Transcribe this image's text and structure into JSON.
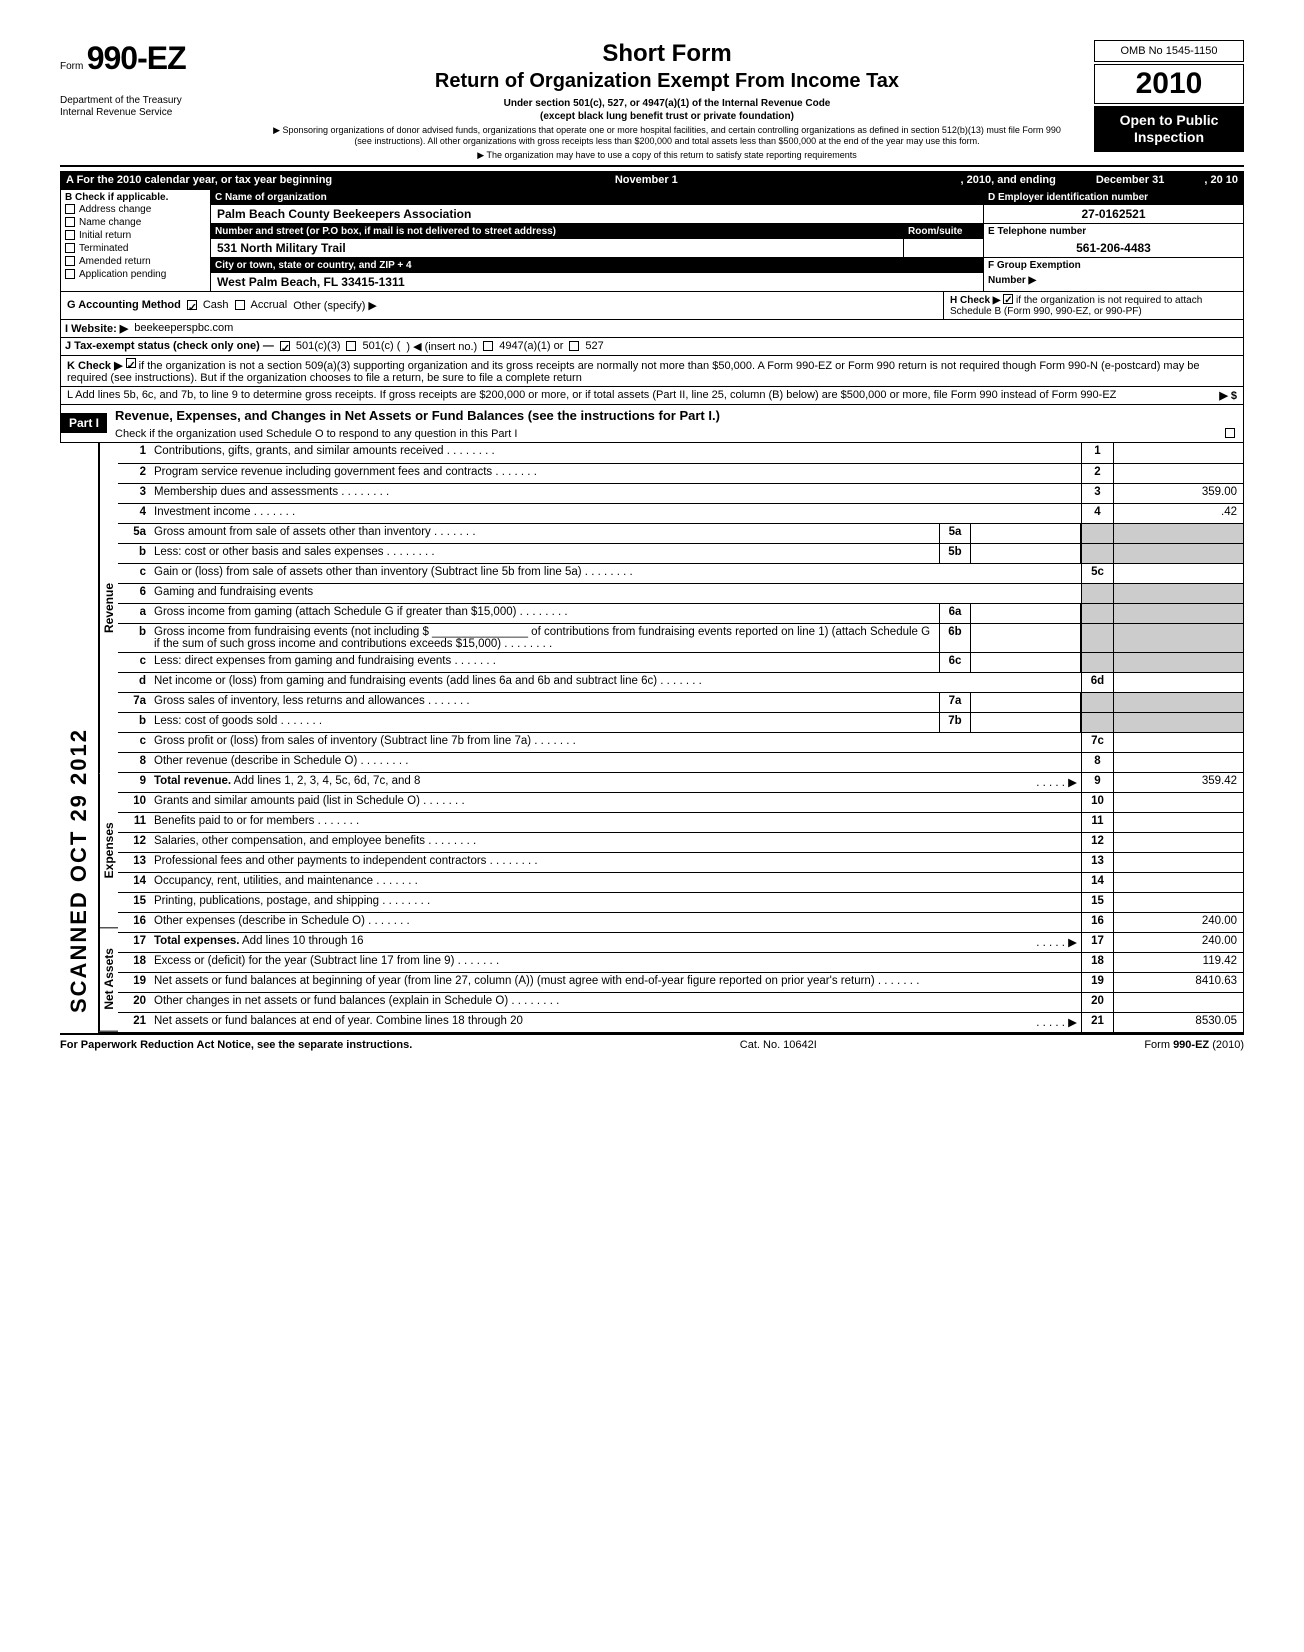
{
  "form": {
    "prefix": "Form",
    "number": "990-EZ",
    "agency1": "Department of the Treasury",
    "agency2": "Internal Revenue Service"
  },
  "title": {
    "main": "Short Form",
    "sub": "Return of Organization Exempt From Income Tax",
    "line1": "Under section 501(c), 527, or 4947(a)(1) of the Internal Revenue Code",
    "line2": "(except black lung benefit trust or private foundation)",
    "note1": "▶ Sponsoring organizations of donor advised funds, organizations that operate one or more hospital facilities, and certain controlling organizations as defined in section 512(b)(13) must file Form 990 (see instructions). All other organizations with gross receipts less than $200,000 and total assets less than $500,000 at the end of the year may use this form.",
    "note2": "▶ The organization may have to use a copy of this return to satisfy state reporting requirements"
  },
  "right": {
    "omb": "OMB No 1545-1150",
    "year": "2010",
    "open1": "Open to Public",
    "open2": "Inspection"
  },
  "rowA": {
    "label": "A For the 2010 calendar year, or tax year beginning",
    "begin": "November 1",
    "mid": ", 2010, and ending",
    "end": "December 31",
    "yr": ", 20   10"
  },
  "B": {
    "label": "B  Check if applicable.",
    "items": [
      "Address change",
      "Name change",
      "Initial return",
      "Terminated",
      "Amended return",
      "Application pending"
    ]
  },
  "C": {
    "nameLabel": "C  Name of organization",
    "name": "Palm Beach County Beekeepers Association",
    "addrLabel": "Number and street (or P.O  box, if mail is not delivered to street address)",
    "room": "Room/suite",
    "addr": "531 North Military Trail",
    "cityLabel": "City or town, state or country, and ZIP + 4",
    "city": "West Palm Beach, FL 33415-1311"
  },
  "D": {
    "label": "D Employer identification number",
    "val": "27-0162521"
  },
  "E": {
    "label": "E  Telephone number",
    "val": "561-206-4483"
  },
  "F": {
    "label": "F  Group Exemption",
    "label2": "Number  ▶"
  },
  "G": {
    "label": "G  Accounting Method",
    "cash": "Cash",
    "accrual": "Accrual",
    "other": "Other (specify) ▶"
  },
  "H": {
    "label": "H  Check  ▶",
    "text": "if the organization is not required to attach Schedule B (Form 990, 990-EZ, or 990-PF)"
  },
  "I": {
    "label": "I   Website: ▶",
    "val": "beekeeperspbc.com"
  },
  "J": {
    "label": "J  Tax-exempt status (check only one) —",
    "a": "501(c)(3)",
    "b": "501(c) (",
    "c": ")  ◀ (insert no.)",
    "d": "4947(a)(1) or",
    "e": "527"
  },
  "K": {
    "label": "K  Check ▶",
    "text": "if the organization is not a section 509(a)(3) supporting organization and its gross receipts are normally not more than $50,000. A Form 990-EZ or Form 990 return is not required though Form 990-N (e-postcard) may be required (see instructions). But if the organization chooses to file a return, be sure to file a complete return"
  },
  "L": {
    "text": "L  Add lines 5b, 6c, and 7b, to line 9 to determine gross receipts. If gross receipts are $200,000 or more, or if total assets (Part II, line  25, column (B) below) are $500,000 or more, file Form 990 instead of Form 990-EZ",
    "arrow": "▶  $"
  },
  "part1": {
    "label": "Part I",
    "title": "Revenue, Expenses, and Changes in Net Assets or Fund Balances (see the instructions for Part I.)",
    "check": "Check if the organization used Schedule O to respond to any question in this Part I"
  },
  "stamp": "SCANNED OCT 29 2012",
  "sections": {
    "revenue": "Revenue",
    "expenses": "Expenses",
    "netassets": "Net Assets"
  },
  "lines": [
    {
      "n": "1",
      "t": "Contributions, gifts, grants, and similar amounts received .",
      "en": "1",
      "ev": ""
    },
    {
      "n": "2",
      "t": "Program service revenue including government fees and contracts",
      "en": "2",
      "ev": ""
    },
    {
      "n": "3",
      "t": "Membership dues and assessments .",
      "en": "3",
      "ev": "359.00"
    },
    {
      "n": "4",
      "t": "Investment income",
      "en": "4",
      "ev": ".42"
    },
    {
      "n": "5a",
      "t": "Gross amount from sale of assets other than inventory",
      "mn": "5a",
      "mv": ""
    },
    {
      "n": "b",
      "t": "Less: cost or other basis and sales expenses .",
      "mn": "5b",
      "mv": ""
    },
    {
      "n": "c",
      "t": "Gain or (loss) from sale of assets other than inventory (Subtract line 5b from line 5a) .",
      "en": "5c",
      "ev": ""
    },
    {
      "n": "6",
      "t": "Gaming and fundraising events"
    },
    {
      "n": "a",
      "t": "Gross income from gaming (attach Schedule G if greater than $15,000) .",
      "mn": "6a",
      "mv": ""
    },
    {
      "n": "b",
      "t": "Gross income from fundraising events (not including $ _______________ of contributions from fundraising events reported on line 1) (attach Schedule G if the sum of such gross income and contributions exceeds $15,000) .",
      "mn": "6b",
      "mv": ""
    },
    {
      "n": "c",
      "t": "Less: direct expenses from gaming and fundraising events",
      "mn": "6c",
      "mv": ""
    },
    {
      "n": "d",
      "t": "Net income or (loss) from gaming and fundraising events (add lines 6a and 6b and subtract line 6c)",
      "en": "6d",
      "ev": ""
    },
    {
      "n": "7a",
      "t": "Gross sales of inventory, less returns and allowances",
      "mn": "7a",
      "mv": ""
    },
    {
      "n": "b",
      "t": "Less: cost of goods sold",
      "mn": "7b",
      "mv": ""
    },
    {
      "n": "c",
      "t": "Gross profit or (loss) from sales of inventory (Subtract line 7b from line 7a)",
      "en": "7c",
      "ev": ""
    },
    {
      "n": "8",
      "t": "Other revenue (describe in Schedule O) .",
      "en": "8",
      "ev": ""
    },
    {
      "n": "9",
      "t": "Total revenue. Add lines 1, 2, 3, 4, 5c, 6d, 7c, and 8",
      "en": "9",
      "ev": "359.42",
      "bold": true,
      "arrow": true
    },
    {
      "n": "10",
      "t": "Grants and similar amounts paid (list in Schedule O)",
      "en": "10",
      "ev": ""
    },
    {
      "n": "11",
      "t": "Benefits paid to or for members",
      "en": "11",
      "ev": ""
    },
    {
      "n": "12",
      "t": "Salaries, other compensation, and employee benefits .",
      "en": "12",
      "ev": ""
    },
    {
      "n": "13",
      "t": "Professional fees and other payments to independent contractors .",
      "en": "13",
      "ev": ""
    },
    {
      "n": "14",
      "t": "Occupancy, rent, utilities, and maintenance",
      "en": "14",
      "ev": ""
    },
    {
      "n": "15",
      "t": "Printing, publications, postage, and shipping .",
      "en": "15",
      "ev": ""
    },
    {
      "n": "16",
      "t": "Other expenses (describe in Schedule O)",
      "en": "16",
      "ev": "240.00"
    },
    {
      "n": "17",
      "t": "Total expenses. Add lines 10 through 16",
      "en": "17",
      "ev": "240.00",
      "bold": true,
      "arrow": true
    },
    {
      "n": "18",
      "t": "Excess or (deficit) for the year (Subtract line 17 from line 9)",
      "en": "18",
      "ev": "119.42"
    },
    {
      "n": "19",
      "t": "Net assets or fund balances at beginning of year (from line 27, column (A)) (must agree with end-of-year figure reported on prior year's return)",
      "en": "19",
      "ev": "8410.63"
    },
    {
      "n": "20",
      "t": "Other changes in net assets or fund balances (explain in Schedule O) .",
      "en": "20",
      "ev": ""
    },
    {
      "n": "21",
      "t": "Net assets or fund balances at end of year. Combine lines 18 through 20",
      "en": "21",
      "ev": "8530.05",
      "arrow": true
    }
  ],
  "footer": {
    "left": "For Paperwork Reduction Act Notice, see the separate instructions.",
    "mid": "Cat. No. 10642I",
    "right": "Form 990-EZ (2010)"
  }
}
